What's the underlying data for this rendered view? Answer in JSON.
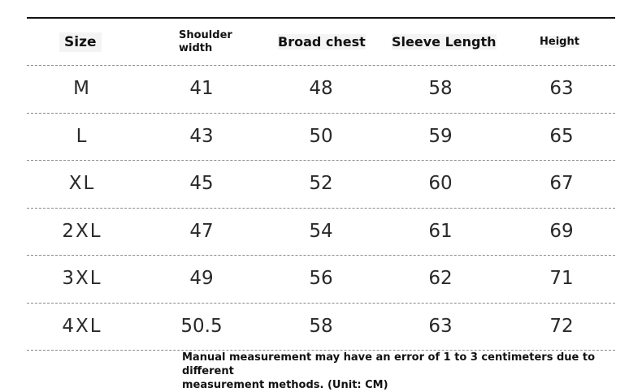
{
  "headers": {
    "size": "Size",
    "shoulder_line1": "Shoulder",
    "shoulder_line2": "width",
    "chest": "Broad chest",
    "sleeve": "Sleeve Length",
    "height": "Height"
  },
  "rows": [
    {
      "size": "M",
      "shoulder": "41",
      "chest": "48",
      "sleeve": "58",
      "height": "63"
    },
    {
      "size": "L",
      "shoulder": "43",
      "chest": "50",
      "sleeve": "59",
      "height": "65"
    },
    {
      "size": "XL",
      "shoulder": "45",
      "chest": "52",
      "sleeve": "60",
      "height": "67"
    },
    {
      "size": "2XL",
      "shoulder": "47",
      "chest": "54",
      "sleeve": "61",
      "height": "69"
    },
    {
      "size": "3XL",
      "shoulder": "49",
      "chest": "56",
      "sleeve": "62",
      "height": "71"
    },
    {
      "size": "4XL",
      "shoulder": "50.5",
      "chest": "58",
      "sleeve": "63",
      "height": "72"
    }
  ],
  "note": {
    "line1": "Manual measurement may have an error of 1 to 3 centimeters due to different",
    "line2": "measurement methods. (Unit: CM)"
  }
}
